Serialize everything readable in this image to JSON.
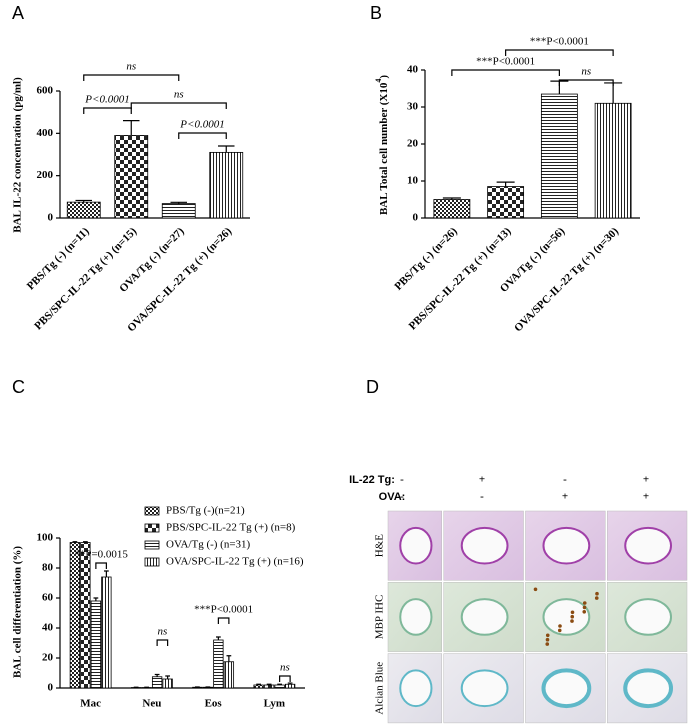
{
  "chart_data": [
    {
      "type": "bar",
      "panel": "A",
      "ylabel": "BAL IL-22 concentration (pg/ml)",
      "categories": [
        "PBS/Tg (-) (n=11)",
        "PBS/SPC-IL-22 Tg (+) (n=15)",
        "OVA/Tg (-) (n=27)",
        "OVA/SPC-IL-22 Tg (+) (n=26)"
      ],
      "values": [
        75,
        390,
        68,
        310
      ],
      "errors": [
        8,
        70,
        6,
        30
      ],
      "patterns": [
        "dense-check",
        "check",
        "hlines",
        "vlines"
      ],
      "ylim": [
        0,
        600
      ],
      "yticks": [
        0,
        200,
        400,
        600
      ],
      "annotations": [
        "ns",
        "P<0.0001",
        "ns",
        "P<0.0001"
      ]
    },
    {
      "type": "bar",
      "panel": "B",
      "ylabel": {
        "text": "BAL Total cell number (X10",
        "superscript": "4",
        "suffix": ")"
      },
      "categories": [
        "PBS/Tg (-) (n=26)",
        "PBS/SPC-IL-22 Tg (+) (n=13)",
        "OVA/Tg (-) (n=56)",
        "OVA/SPC-IL-22 Tg (+) (n=30)"
      ],
      "values": [
        5,
        8.5,
        33.5,
        31
      ],
      "errors": [
        0.4,
        1.2,
        3.5,
        5.5
      ],
      "patterns": [
        "dense-check",
        "check",
        "hlines",
        "vlines"
      ],
      "ylim": [
        0,
        40
      ],
      "yticks": [
        0,
        10,
        20,
        30,
        40
      ],
      "annotations": [
        "***P<0.0001",
        "***P<0.0001",
        "ns"
      ]
    },
    {
      "type": "bar",
      "panel": "C",
      "ylabel": "BAL cell differentiation (%)",
      "categories": [
        "Mac",
        "Neu",
        "Eos",
        "Lym"
      ],
      "series": [
        {
          "name": "PBS/Tg (-)(n=21)",
          "pattern": "dense-check",
          "values": [
            97,
            0.3,
            0.5,
            2
          ],
          "errors": [
            0.5,
            0.2,
            0.2,
            0.5
          ]
        },
        {
          "name": "PBS/SPC-IL-22 Tg (+) (n=8)",
          "pattern": "check",
          "values": [
            97,
            0.3,
            0.5,
            2
          ],
          "errors": [
            0.5,
            0.2,
            0.2,
            0.5
          ]
        },
        {
          "name": "OVA/Tg (-) (n=31)",
          "pattern": "hlines",
          "values": [
            58,
            7.5,
            32,
            2
          ],
          "errors": [
            2,
            1.5,
            2,
            0.5
          ]
        },
        {
          "name": "OVA/SPC-IL-22 Tg (+) (n=16)",
          "pattern": "vlines",
          "values": [
            74,
            6,
            17.5,
            2.5
          ],
          "errors": [
            4,
            2,
            4,
            0.8
          ]
        }
      ],
      "ylim": [
        0,
        100
      ],
      "yticks": [
        0,
        20,
        40,
        60,
        80,
        100
      ],
      "annotations": [
        "**P=0.0015",
        "ns",
        "***P<0.0001",
        "ns"
      ]
    }
  ],
  "panel_d": {
    "panel": "D",
    "header": [
      {
        "label": "IL-22 Tg:",
        "signs": [
          "-",
          "+",
          "-",
          "+"
        ]
      },
      {
        "label": "OVA:",
        "signs": [
          "-",
          "-",
          "+",
          "+"
        ]
      }
    ],
    "rows": [
      "H&E",
      "MBP IHC",
      "Alcian Blue"
    ]
  }
}
